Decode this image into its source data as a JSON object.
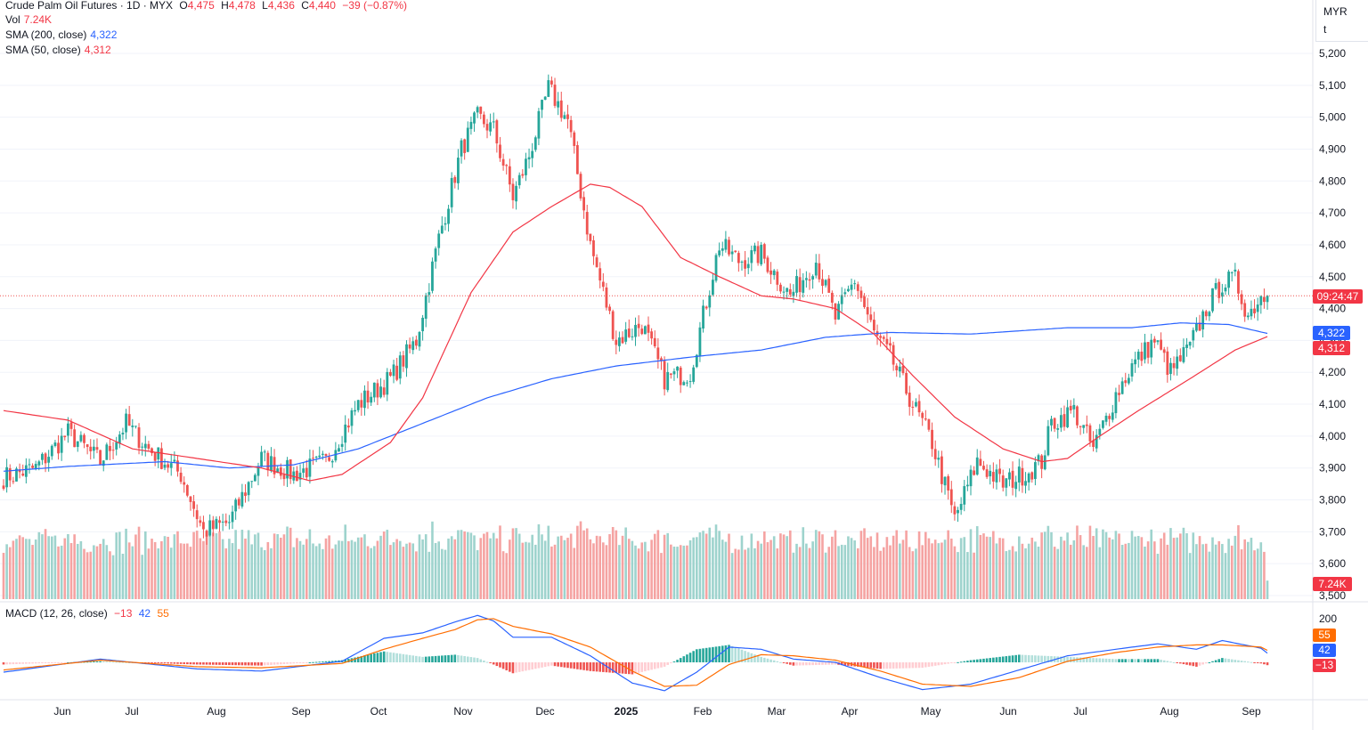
{
  "header": {
    "symbol_line": "Crude Palm Oil Futures · 1D · MYX",
    "open_label": "O",
    "open": "4,475",
    "high_label": "H",
    "high": "4,478",
    "low_label": "L",
    "low": "4,436",
    "close_label": "C",
    "close": "4,440",
    "change": "−39 (−0.87%)",
    "vol_label": "Vol",
    "vol": "7.24K",
    "sma200_label": "SMA (200, close)",
    "sma200": "4,322",
    "sma50_label": "SMA (50, close)",
    "sma50": "4,312",
    "macd_label": "MACD (12, 26, close)",
    "macd_hist": "−13",
    "macd_line": "42",
    "macd_signal": "55"
  },
  "currency": {
    "code": "MYR",
    "unit": "t"
  },
  "price_axis": [
    "5,200",
    "5,100",
    "5,000",
    "4,900",
    "4,800",
    "4,700",
    "4,600",
    "4,500",
    "4,400",
    "4,300",
    "4,200",
    "4,100",
    "4,000",
    "3,900",
    "3,800",
    "3,700",
    "3,600",
    "3,500"
  ],
  "macd_axis": [
    "200"
  ],
  "tags": {
    "countdown": "09:24:47",
    "sma200": "4,322",
    "sma50": "4,312",
    "volume": "7.24K",
    "macd_signal": "55",
    "macd_line": "42",
    "macd_hist": "−13"
  },
  "time_axis": [
    "Jun",
    "Jul",
    "Aug",
    "Sep",
    "Oct",
    "Nov",
    "Dec",
    "2025",
    "Feb",
    "Mar",
    "Apr",
    "May",
    "Jun",
    "Jul",
    "Aug",
    "Sep"
  ],
  "colors": {
    "up": "#26a69a",
    "down": "#ef5350",
    "up_vol": "#9ed3cd",
    "down_vol": "#f5a3a2",
    "sma200": "#2962ff",
    "sma50": "#f23645",
    "macd": "#2962ff",
    "signal": "#ff6d00",
    "tag_red": "#f23645",
    "tag_blue": "#2962ff",
    "tag_orange": "#ff6d00"
  },
  "chart_data": {
    "type": "candlestick",
    "price_range": [
      3500,
      5200
    ],
    "last_close": 4440,
    "series_anchors": {
      "close": [
        [
          0,
          3870
        ],
        [
          10,
          3900
        ],
        [
          20,
          4010
        ],
        [
          30,
          3920
        ],
        [
          38,
          4040
        ],
        [
          45,
          3960
        ],
        [
          55,
          3880
        ],
        [
          62,
          3700
        ],
        [
          70,
          3730
        ],
        [
          80,
          3930
        ],
        [
          90,
          3880
        ],
        [
          100,
          3920
        ],
        [
          110,
          4100
        ],
        [
          120,
          4180
        ],
        [
          128,
          4300
        ],
        [
          135,
          4620
        ],
        [
          142,
          4900
        ],
        [
          147,
          5000
        ],
        [
          152,
          4960
        ],
        [
          158,
          4750
        ],
        [
          163,
          4880
        ],
        [
          169,
          5090
        ],
        [
          175,
          4990
        ],
        [
          182,
          4600
        ],
        [
          190,
          4300
        ],
        [
          198,
          4350
        ],
        [
          205,
          4180
        ],
        [
          213,
          4200
        ],
        [
          222,
          4600
        ],
        [
          228,
          4550
        ],
        [
          235,
          4570
        ],
        [
          244,
          4440
        ],
        [
          252,
          4550
        ],
        [
          258,
          4370
        ],
        [
          264,
          4490
        ],
        [
          270,
          4320
        ],
        [
          275,
          4250
        ],
        [
          282,
          4100
        ],
        [
          288,
          3980
        ],
        [
          295,
          3740
        ],
        [
          302,
          3920
        ],
        [
          310,
          3850
        ],
        [
          318,
          3890
        ],
        [
          322,
          3920
        ],
        [
          325,
          4040
        ],
        [
          332,
          4080
        ],
        [
          338,
          3960
        ],
        [
          345,
          4130
        ],
        [
          350,
          4220
        ],
        [
          357,
          4300
        ],
        [
          362,
          4200
        ],
        [
          368,
          4280
        ],
        [
          373,
          4400
        ],
        [
          378,
          4480
        ],
        [
          382,
          4490
        ],
        [
          386,
          4380
        ],
        [
          390,
          4440
        ],
        [
          392,
          4440
        ]
      ],
      "sma200": [
        [
          0,
          3890
        ],
        [
          20,
          3905
        ],
        [
          50,
          3920
        ],
        [
          70,
          3900
        ],
        [
          90,
          3910
        ],
        [
          110,
          3960
        ],
        [
          125,
          4020
        ],
        [
          150,
          4120
        ],
        [
          170,
          4180
        ],
        [
          190,
          4220
        ],
        [
          215,
          4250
        ],
        [
          235,
          4270
        ],
        [
          255,
          4310
        ],
        [
          275,
          4325
        ],
        [
          300,
          4320
        ],
        [
          330,
          4340
        ],
        [
          350,
          4340
        ],
        [
          365,
          4355
        ],
        [
          380,
          4350
        ],
        [
          392,
          4322
        ]
      ],
      "sma50": [
        [
          0,
          4080
        ],
        [
          20,
          4050
        ],
        [
          40,
          3960
        ],
        [
          60,
          3930
        ],
        [
          80,
          3900
        ],
        [
          95,
          3860
        ],
        [
          105,
          3880
        ],
        [
          120,
          3980
        ],
        [
          130,
          4120
        ],
        [
          145,
          4450
        ],
        [
          158,
          4640
        ],
        [
          170,
          4720
        ],
        [
          182,
          4790
        ],
        [
          188,
          4780
        ],
        [
          198,
          4720
        ],
        [
          210,
          4560
        ],
        [
          222,
          4500
        ],
        [
          235,
          4440
        ],
        [
          245,
          4430
        ],
        [
          258,
          4400
        ],
        [
          270,
          4320
        ],
        [
          282,
          4190
        ],
        [
          295,
          4060
        ],
        [
          310,
          3960
        ],
        [
          322,
          3920
        ],
        [
          330,
          3930
        ],
        [
          340,
          4000
        ],
        [
          352,
          4080
        ],
        [
          368,
          4180
        ],
        [
          382,
          4270
        ],
        [
          392,
          4312
        ]
      ],
      "macd": [
        [
          0,
          -45
        ],
        [
          30,
          15
        ],
        [
          60,
          -30
        ],
        [
          80,
          -40
        ],
        [
          105,
          5
        ],
        [
          118,
          110
        ],
        [
          130,
          135
        ],
        [
          140,
          185
        ],
        [
          147,
          215
        ],
        [
          152,
          190
        ],
        [
          158,
          115
        ],
        [
          170,
          115
        ],
        [
          182,
          30
        ],
        [
          195,
          -95
        ],
        [
          205,
          -130
        ],
        [
          215,
          -45
        ],
        [
          225,
          70
        ],
        [
          235,
          60
        ],
        [
          245,
          15
        ],
        [
          258,
          0
        ],
        [
          272,
          -70
        ],
        [
          285,
          -125
        ],
        [
          300,
          -100
        ],
        [
          315,
          -35
        ],
        [
          330,
          30
        ],
        [
          345,
          60
        ],
        [
          358,
          85
        ],
        [
          370,
          60
        ],
        [
          378,
          100
        ],
        [
          390,
          65
        ],
        [
          392,
          42
        ]
      ],
      "signal": [
        [
          0,
          -35
        ],
        [
          30,
          10
        ],
        [
          60,
          -20
        ],
        [
          80,
          -25
        ],
        [
          105,
          -5
        ],
        [
          118,
          60
        ],
        [
          130,
          110
        ],
        [
          140,
          150
        ],
        [
          147,
          195
        ],
        [
          152,
          200
        ],
        [
          158,
          165
        ],
        [
          170,
          130
        ],
        [
          182,
          70
        ],
        [
          195,
          -40
        ],
        [
          205,
          -110
        ],
        [
          215,
          -105
        ],
        [
          225,
          -10
        ],
        [
          235,
          35
        ],
        [
          245,
          30
        ],
        [
          258,
          10
        ],
        [
          272,
          -40
        ],
        [
          285,
          -100
        ],
        [
          300,
          -110
        ],
        [
          315,
          -70
        ],
        [
          330,
          5
        ],
        [
          345,
          45
        ],
        [
          358,
          70
        ],
        [
          370,
          80
        ],
        [
          378,
          80
        ],
        [
          390,
          70
        ],
        [
          392,
          55
        ]
      ]
    },
    "volume_range": [
      0,
      40000
    ],
    "macd_range": [
      -200,
      300
    ]
  }
}
